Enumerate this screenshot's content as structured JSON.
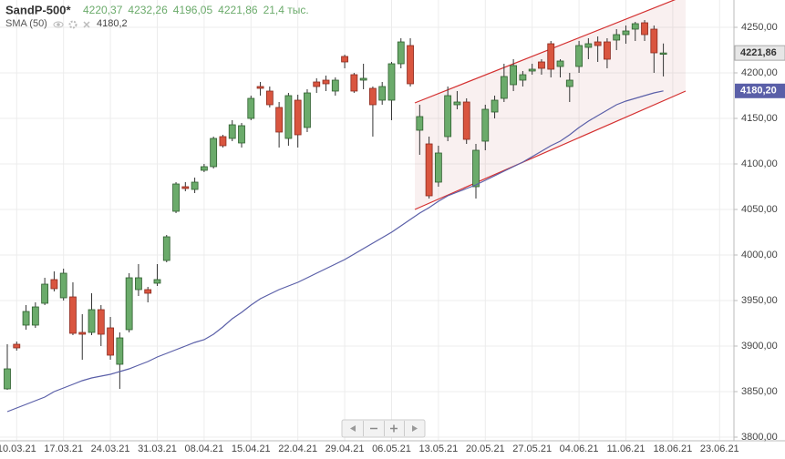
{
  "chart_data": {
    "type": "candlestick",
    "title": "SandP-500*",
    "header_values": [
      "4220,37",
      "4232,26",
      "4196,05",
      "4221,86",
      "21,4 тыс."
    ],
    "categories": [
      null,
      "10.03.21",
      null,
      null,
      null,
      null,
      "17.03.21",
      null,
      null,
      null,
      null,
      "24.03.21",
      null,
      null,
      null,
      null,
      "31.03.21",
      null,
      null,
      null,
      null,
      "08.04.21",
      null,
      null,
      null,
      null,
      "15.04.21",
      null,
      null,
      null,
      null,
      "22.04.21",
      null,
      null,
      null,
      null,
      "29.04.21",
      null,
      null,
      null,
      null,
      "06.05.21",
      null,
      null,
      null,
      null,
      "13.05.21",
      null,
      null,
      null,
      null,
      "20.05.21",
      null,
      null,
      null,
      null,
      "27.05.21",
      null,
      null,
      null,
      null,
      "04.06.21",
      null,
      null,
      null,
      null,
      "11.06.21",
      null,
      null,
      null,
      null,
      "18.06.21",
      null,
      null,
      null,
      null,
      "23.06.21",
      null
    ],
    "open": [
      3853,
      3902,
      3923,
      3923,
      3947,
      3973,
      3953,
      3954,
      3915,
      3915,
      3940,
      3920,
      3880,
      3918,
      3962,
      3962,
      3969,
      3994,
      4048,
      4075,
      4072,
      4093,
      4097,
      4130,
      4128,
      4123,
      4150,
      4185,
      4180,
      4162,
      4128,
      4170,
      4140,
      4190,
      4192,
      4180,
      4218,
      4198,
      4192,
      4183,
      4170,
      4170,
      4210,
      4230,
      4137,
      4122,
      4080,
      4130,
      4165,
      4168,
      4075,
      4125,
      4157,
      4172,
      4187,
      4192,
      4202,
      4212,
      4232,
      4207,
      4185,
      4207,
      4228,
      4234,
      4234,
      4236,
      4242,
      4248,
      4255,
      4248,
      4220.37,
      null,
      null,
      null,
      null,
      null,
      null,
      null
    ],
    "high": [
      3902,
      3905,
      3945,
      3948,
      3975,
      3982,
      3985,
      3970,
      3935,
      3958,
      3945,
      3932,
      3915,
      3980,
      3990,
      3965,
      3990,
      4022,
      4080,
      4080,
      4085,
      4100,
      4130,
      4132,
      4148,
      4145,
      4175,
      4190,
      4185,
      4168,
      4178,
      4176,
      4182,
      4194,
      4197,
      4195,
      4220,
      4200,
      4210,
      4185,
      4190,
      4212,
      4238,
      4238,
      4165,
      4130,
      4120,
      4185,
      4180,
      4172,
      4122,
      4165,
      4175,
      4210,
      4215,
      4202,
      4210,
      4215,
      4235,
      4215,
      4200,
      4235,
      4238,
      4240,
      4238,
      4248,
      4252,
      4256,
      4258,
      4252,
      4232.26,
      null,
      null,
      null,
      null,
      null,
      null,
      null
    ],
    "low": [
      3852,
      3895,
      3918,
      3920,
      3945,
      3960,
      3950,
      3912,
      3885,
      3912,
      3900,
      3885,
      3853,
      3915,
      3955,
      3948,
      3966,
      3992,
      4046,
      4070,
      4068,
      4091,
      4095,
      4118,
      4125,
      4118,
      4148,
      4175,
      4162,
      4118,
      4120,
      4118,
      4135,
      4178,
      4180,
      4175,
      4205,
      4178,
      4182,
      4130,
      4165,
      4148,
      4205,
      4185,
      4110,
      4062,
      4075,
      4125,
      4160,
      4122,
      4062,
      4115,
      4150,
      4168,
      4180,
      4185,
      4198,
      4198,
      4195,
      4195,
      4168,
      4200,
      4215,
      4212,
      4205,
      4225,
      4232,
      4235,
      4235,
      4200,
      4196.05,
      null,
      null,
      null,
      null,
      null,
      null,
      null
    ],
    "close": [
      3875,
      3898,
      3938,
      3943,
      3968,
      3963,
      3980,
      3914,
      3913,
      3940,
      3913,
      3890,
      3909,
      3975,
      3975,
      3958,
      3973,
      4020,
      4078,
      4073,
      4080,
      4097,
      4128,
      4120,
      4143,
      4142,
      4172,
      4183,
      4165,
      4135,
      4175,
      4132,
      4178,
      4185,
      4188,
      4192,
      4212,
      4180,
      4194,
      4165,
      4185,
      4210,
      4234,
      4188,
      4152,
      4065,
      4112,
      4175,
      4168,
      4127,
      4115,
      4160,
      4170,
      4196,
      4208,
      4198,
      4204,
      4205,
      4204,
      4213,
      4192,
      4230,
      4232,
      4230,
      4215,
      4242,
      4246,
      4254,
      4242,
      4222,
      4221.86,
      null,
      null,
      null,
      null,
      null,
      null,
      null
    ],
    "up_color": "#6bab6b",
    "down_color": "#d9553f",
    "last_price": {
      "value": 4221.86,
      "label": "4221,86"
    },
    "sma": {
      "name": "SMA (50)",
      "header_value": "4180,2",
      "color": "#5a5fa8",
      "values": [
        3828,
        3832,
        3836,
        3840,
        3844,
        3850,
        3854,
        3858,
        3862,
        3865,
        3867,
        3869,
        3872,
        3875,
        3879,
        3883,
        3888,
        3892,
        3896,
        3900,
        3904,
        3907,
        3913,
        3921,
        3930,
        3937,
        3945,
        3952,
        3957,
        3962,
        3966,
        3970,
        3975,
        3980,
        3985,
        3990,
        3995,
        4001,
        4007,
        4013,
        4019,
        4025,
        4032,
        4039,
        4046,
        4052,
        4059,
        4065,
        4069,
        4073,
        4077,
        4082,
        4087,
        4092,
        4097,
        4102,
        4108,
        4114,
        4120,
        4125,
        4132,
        4140,
        4147,
        4153,
        4159,
        4165,
        4169,
        4172,
        4175,
        4178,
        4180.2,
        null,
        null,
        null,
        null,
        null,
        null,
        null
      ],
      "last": {
        "value": 4180.2,
        "label": "4180,20"
      }
    },
    "ylim": [
      3796,
      4280
    ],
    "yticks": [
      {
        "value": 3800,
        "label": "3800,00"
      },
      {
        "value": 3850,
        "label": "3850,00"
      },
      {
        "value": 3900,
        "label": "3900,00"
      },
      {
        "value": 3950,
        "label": "3950,00"
      },
      {
        "value": 4000,
        "label": "4000,00"
      },
      {
        "value": 4050,
        "label": "4050,00"
      },
      {
        "value": 4100,
        "label": "4100,00"
      },
      {
        "value": 4150,
        "label": "4150,00"
      },
      {
        "value": 4200,
        "label": "4200,00"
      },
      {
        "value": 4250,
        "label": "4250,00"
      }
    ],
    "grid": true
  }
}
